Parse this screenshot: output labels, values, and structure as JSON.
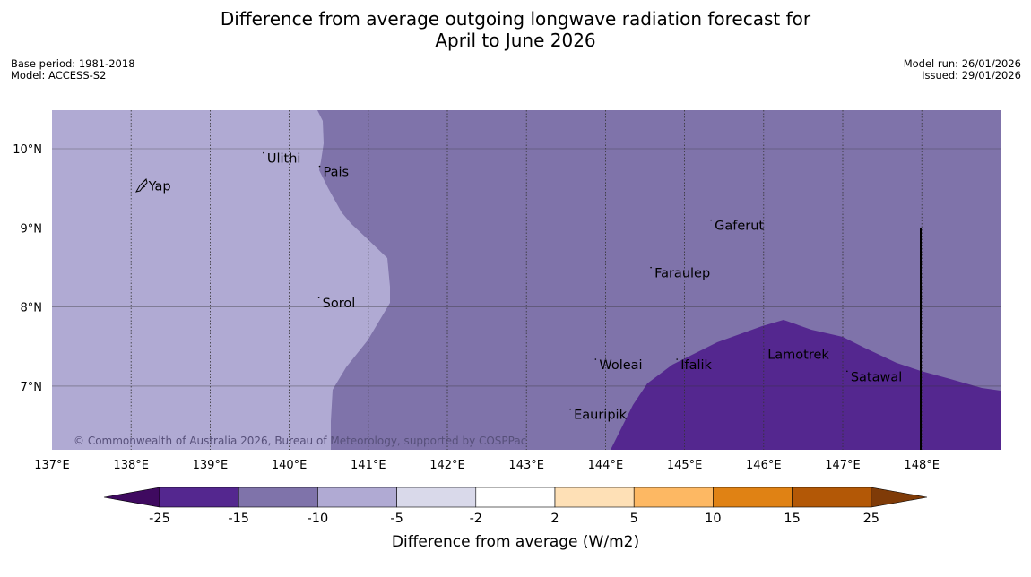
{
  "title": {
    "line1": "Difference from average outgoing longwave radiation forecast for",
    "line2": "April to June 2026"
  },
  "meta": {
    "base_period": "Base period: 1981-2018",
    "model": "Model: ACCESS-S2",
    "model_run": "Model run: 26/01/2026",
    "issued": "Issued: 29/01/2026"
  },
  "copyright": "© Commonwealth of Australia 2026, Bureau of Meteorology, supported by COSPPac",
  "map": {
    "lon_range": [
      137,
      149
    ],
    "lat_range": [
      6.2,
      10.5
    ],
    "lon_ticks": [
      137,
      138,
      139,
      140,
      141,
      142,
      143,
      144,
      145,
      146,
      147,
      148
    ],
    "lon_labels": [
      "137°E",
      "138°E",
      "139°E",
      "140°E",
      "141°E",
      "142°E",
      "143°E",
      "144°E",
      "145°E",
      "146°E",
      "147°E",
      "148°E"
    ],
    "lat_ticks": [
      10,
      9,
      8,
      7
    ],
    "lat_labels": [
      "10°N",
      "9°N",
      "8°N",
      "7°N"
    ],
    "colors": {
      "band_-10_-5": "#b0aad3",
      "band_-15_-10": "#7f73aa",
      "band_-25_-15": "#54278f",
      "grid": "#333333"
    },
    "places": [
      {
        "name": "Yap",
        "lon": 138.22,
        "lat": 9.53
      },
      {
        "name": "Ulithi",
        "lon": 139.72,
        "lat": 9.88
      },
      {
        "name": "Pais",
        "lon": 140.43,
        "lat": 9.71
      },
      {
        "name": "Gaferut",
        "lon": 145.38,
        "lat": 9.03
      },
      {
        "name": "Faraulep",
        "lon": 144.62,
        "lat": 8.43
      },
      {
        "name": "Sorol",
        "lon": 140.42,
        "lat": 8.05
      },
      {
        "name": "Woleai",
        "lon": 143.92,
        "lat": 7.27
      },
      {
        "name": "Ifalik",
        "lon": 144.95,
        "lat": 7.27
      },
      {
        "name": "Lamotrek",
        "lon": 146.05,
        "lat": 7.4
      },
      {
        "name": "Satawal",
        "lon": 147.1,
        "lat": 7.12
      },
      {
        "name": "Eauripik",
        "lon": 143.6,
        "lat": 6.64
      }
    ]
  },
  "colorbar": {
    "boundaries": [
      "-25",
      "-15",
      "-10",
      "-5",
      "-2",
      "2",
      "5",
      "10",
      "15",
      "25"
    ],
    "colors": [
      "#54278f",
      "#7f73aa",
      "#b0aad3",
      "#d9d9ea",
      "#ffffff",
      "#fee0b6",
      "#fdb863",
      "#e08214",
      "#b35806"
    ],
    "under_color": "#3f0a60",
    "over_color": "#7f3b08",
    "label": "Difference from average (W/m2)"
  }
}
